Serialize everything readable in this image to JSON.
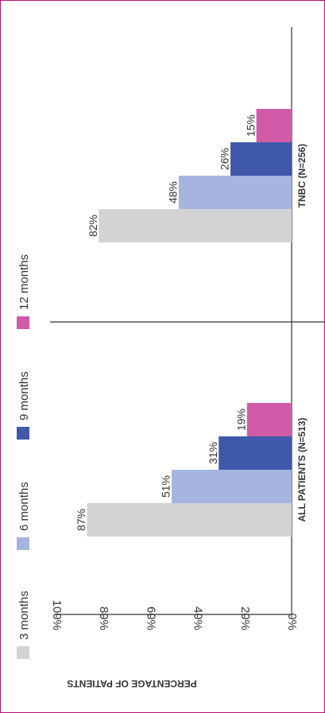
{
  "chart_data": {
    "type": "bar",
    "orientation": "rotated-90-clockwise",
    "ylabel": "PERCENTAGE OF PATIENTS",
    "ylim": [
      0,
      100
    ],
    "yticks": [
      "0%",
      "20%",
      "40%",
      "60%",
      "80%",
      "100%"
    ],
    "tick_values": [
      0,
      20,
      40,
      60,
      80,
      100
    ],
    "categories": [
      "ALL PATIENTS (N=513)",
      "TNBC (N=256)"
    ],
    "series": [
      {
        "name": "3 months",
        "values": [
          87,
          82
        ],
        "labels": [
          "87%",
          "82%"
        ],
        "color": "#d3d3d5"
      },
      {
        "name": "6 months",
        "values": [
          51,
          48
        ],
        "labels": [
          "51%",
          "48%"
        ],
        "color": "#a6b5e0"
      },
      {
        "name": "9 months",
        "values": [
          31,
          26
        ],
        "labels": [
          "31%",
          "26%"
        ],
        "color": "#3f58aa"
      },
      {
        "name": "12 months",
        "values": [
          19,
          15
        ],
        "labels": [
          "19%",
          "15%"
        ],
        "color": "#d15ba8"
      }
    ],
    "grid": false,
    "legend_position": "left"
  },
  "colors": {
    "frame_border": "#b3126f",
    "axis": "#333333",
    "text": "#333333"
  }
}
